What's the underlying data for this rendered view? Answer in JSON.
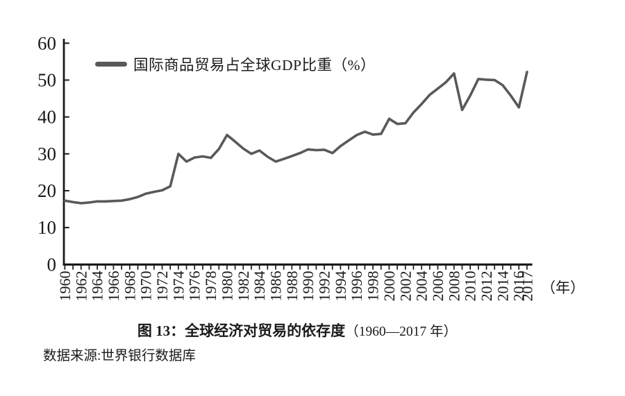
{
  "figure": {
    "caption_main": "图 13：全球经济对贸易的依存度",
    "caption_range": "（1960—2017 年）",
    "source": "数据来源:世界银行数据库"
  },
  "chart_data": {
    "type": "line",
    "title": "",
    "xlabel": "（年）",
    "ylabel": "",
    "ylim": [
      0,
      60
    ],
    "yticks": [
      0,
      10,
      20,
      30,
      40,
      50,
      60
    ],
    "grid": false,
    "legend_position": "top-left-inside",
    "axis_color": "#1a1a1a",
    "x": [
      1960,
      1961,
      1962,
      1963,
      1964,
      1965,
      1966,
      1967,
      1968,
      1969,
      1970,
      1971,
      1972,
      1973,
      1974,
      1975,
      1976,
      1977,
      1978,
      1979,
      1980,
      1981,
      1982,
      1983,
      1984,
      1985,
      1986,
      1987,
      1988,
      1989,
      1990,
      1991,
      1992,
      1993,
      1994,
      1995,
      1996,
      1997,
      1998,
      1999,
      2000,
      2001,
      2002,
      2003,
      2004,
      2005,
      2006,
      2007,
      2008,
      2009,
      2010,
      2011,
      2012,
      2013,
      2014,
      2015,
      2016,
      2017
    ],
    "xtick_labels": [
      "1960",
      "1962",
      "1964",
      "1966",
      "1968",
      "1970",
      "1972",
      "1974",
      "1976",
      "1978",
      "1980",
      "1982",
      "1984",
      "1986",
      "1988",
      "1990",
      "1992",
      "1994",
      "1996",
      "1998",
      "2000",
      "2002",
      "2004",
      "2006",
      "2008",
      "2010",
      "2012",
      "2014",
      "2016",
      "2017"
    ],
    "series": [
      {
        "name": "国际商品贸易占全球GDP比重（%）",
        "color": "#58595b",
        "values": [
          17.3,
          16.9,
          16.6,
          16.8,
          17.1,
          17.1,
          17.2,
          17.3,
          17.7,
          18.3,
          19.2,
          19.7,
          20.1,
          21.2,
          30.0,
          27.9,
          29.0,
          29.3,
          28.9,
          31.3,
          35.1,
          33.3,
          31.4,
          30.0,
          30.9,
          29.2,
          27.9,
          28.6,
          29.4,
          30.2,
          31.2,
          31.0,
          31.1,
          30.2,
          32.1,
          33.6,
          35.1,
          36.0,
          35.2,
          35.4,
          39.5,
          38.1,
          38.3,
          41.2,
          43.5,
          46.0,
          47.7,
          49.4,
          51.8,
          41.9,
          45.8,
          50.3,
          50.1,
          50.0,
          48.6,
          45.8,
          42.6,
          52.2
        ]
      }
    ]
  }
}
